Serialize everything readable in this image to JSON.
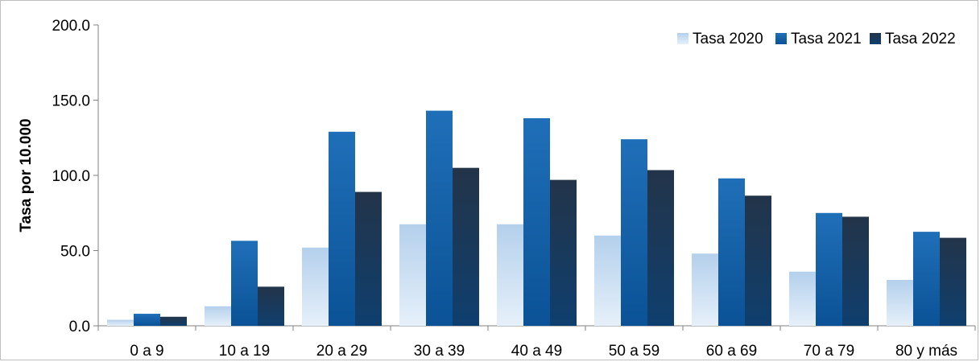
{
  "chart_data": {
    "type": "bar",
    "title": "",
    "xlabel": "",
    "ylabel": "Tasa por 10.000",
    "ylim": [
      0,
      200
    ],
    "yticks": [
      "0.0",
      "50.0",
      "100.0",
      "150.0",
      "200.0"
    ],
    "grid": false,
    "legend_position": "top-right",
    "categories": [
      "0 a 9",
      "10 a 19",
      "20 a 29",
      "30 a 39",
      "40 a 49",
      "50 a 59",
      "60 a 69",
      "70 a 79",
      "80 y más"
    ],
    "series": [
      {
        "name": "Tasa 2020",
        "values": [
          4,
          13,
          52,
          67.5,
          67.5,
          60,
          48,
          36,
          30.5
        ],
        "color_top": "#b4d0ec",
        "color_bottom": "#e6f0fa"
      },
      {
        "name": "Tasa 2021",
        "values": [
          8,
          56.5,
          129,
          143,
          138,
          124,
          98,
          75,
          62.5
        ],
        "color_top": "#1f6fb8",
        "color_bottom": "#0b5296"
      },
      {
        "name": "Tasa 2022",
        "values": [
          6,
          26,
          89,
          105,
          97,
          103.5,
          86.5,
          72.5,
          58.5
        ],
        "color_top": "#233449",
        "color_bottom": "#0f3f6e"
      }
    ]
  }
}
